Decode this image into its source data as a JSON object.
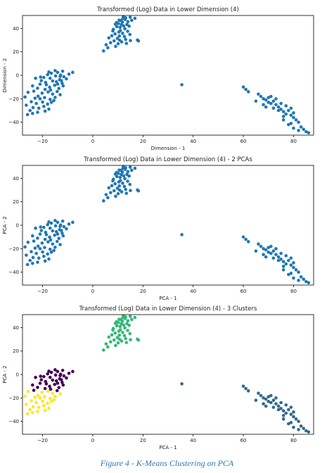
{
  "figure": {
    "caption": "Figure 4 - K-Means Clustering on PCA"
  },
  "colors": {
    "point": "#1f77b4",
    "cluster_purple": "#440154",
    "cluster_teal": "#31688e",
    "cluster_green": "#35b779",
    "cluster_yellow": "#fde725"
  },
  "chart_data": [
    {
      "type": "scatter",
      "title": "Transformed (Log) Data in Lower Dimension (4)",
      "xlabel": "Dimension - 1",
      "ylabel": "Dimension - 2",
      "xlim": [
        -28,
        88
      ],
      "ylim": [
        -51,
        51
      ],
      "xticks": [
        -20,
        0,
        20,
        40,
        60,
        80
      ],
      "yticks": [
        -40,
        -20,
        0,
        20,
        40
      ],
      "grid": false,
      "colored_by_cluster": false,
      "clusters": [
        {
          "id": "top",
          "color": "#1f77b4",
          "points": [
            [
              10.5,
              47
            ],
            [
              11.2,
              46.8
            ],
            [
              12.0,
              48.5
            ],
            [
              13.1,
              49.0
            ],
            [
              11.8,
              45.4
            ],
            [
              12.9,
              47.6
            ],
            [
              10.2,
              44.2
            ],
            [
              9.0,
              43.6
            ],
            [
              14.0,
              45.7
            ],
            [
              12.3,
              42.1
            ],
            [
              10.9,
              40.9
            ],
            [
              13.6,
              43.3
            ],
            [
              9.6,
              41.5
            ],
            [
              8.2,
              39.2
            ],
            [
              12.8,
              39.7
            ],
            [
              11.0,
              38.1
            ],
            [
              14.5,
              41.9
            ],
            [
              10.4,
              36.9
            ],
            [
              13.9,
              37.5
            ],
            [
              8.9,
              35.3
            ],
            [
              11.9,
              35.8
            ],
            [
              7.6,
              33.7
            ],
            [
              12.6,
              33.1
            ],
            [
              9.8,
              31.5
            ],
            [
              14.8,
              34.8
            ],
            [
              6.4,
              31.9
            ],
            [
              10.7,
              30.0
            ],
            [
              13.1,
              30.6
            ],
            [
              8.5,
              29.4
            ],
            [
              11.5,
              28.5
            ],
            [
              15.0,
              29.6
            ],
            [
              7.1,
              27.8
            ],
            [
              5.3,
              26.1
            ],
            [
              10.1,
              26.9
            ],
            [
              13.4,
              27.2
            ],
            [
              9.1,
              24.7
            ],
            [
              4.3,
              20.8
            ],
            [
              6.0,
              23.5
            ],
            [
              15.5,
              46.9
            ],
            [
              16.8,
              48.6
            ],
            [
              14.9,
              49.5
            ],
            [
              18.2,
              29.3
            ],
            [
              17.8,
              30.1
            ],
            [
              8.0,
              37.8
            ],
            [
              9.5,
              45.0
            ],
            [
              12.2,
              50.0
            ],
            [
              11.4,
              43.3
            ],
            [
              10.6,
              33.5
            ]
          ]
        },
        {
          "id": "left",
          "color": "#1f77b4",
          "points": [
            [
              -15,
              4
            ],
            [
              -14,
              2.5
            ],
            [
              -16.5,
              1.8
            ],
            [
              -13,
              -1
            ],
            [
              -12,
              3.5
            ],
            [
              -17,
              -2.5
            ],
            [
              -18,
              0.5
            ],
            [
              -19.5,
              -1.8
            ],
            [
              -16,
              -4.8
            ],
            [
              -14.5,
              -5.5
            ],
            [
              -13.2,
              -3.8
            ],
            [
              -11.5,
              -1.2
            ],
            [
              -20.5,
              -4.5
            ],
            [
              -21,
              -7.5
            ],
            [
              -18.5,
              -8.0
            ],
            [
              -17.2,
              -10.1
            ],
            [
              -15.2,
              -8.5
            ],
            [
              -13.5,
              -11.2
            ],
            [
              -12.2,
              -6.8
            ],
            [
              -19.0,
              -12.0
            ],
            [
              -22.0,
              -11.0
            ],
            [
              -23.5,
              -13.5
            ],
            [
              -20.2,
              -15.2
            ],
            [
              -17.8,
              -14.2
            ],
            [
              -16.0,
              -16.0
            ],
            [
              -14.2,
              -13.8
            ],
            [
              -21.8,
              -17.8
            ],
            [
              -23.0,
              -19.5
            ],
            [
              -19.2,
              -19.0
            ],
            [
              -17.0,
              -20.5
            ],
            [
              -15.0,
              -18.8
            ],
            [
              -24.5,
              -22.5
            ],
            [
              -22.5,
              -24.0
            ],
            [
              -20.0,
              -22.8
            ],
            [
              -18.0,
              -24.5
            ],
            [
              -16.5,
              -23.0
            ],
            [
              -23.8,
              -27.5
            ],
            [
              -21.5,
              -28.0
            ],
            [
              -19.5,
              -26.5
            ],
            [
              -25.0,
              -30.0
            ],
            [
              -22.0,
              -31.5
            ],
            [
              -19.0,
              -30.5
            ],
            [
              -17.5,
              -28.8
            ],
            [
              -26.5,
              -25.5
            ],
            [
              -27.0,
              -18.5
            ],
            [
              -25.8,
              -14.5
            ],
            [
              -24.0,
              -9.0
            ],
            [
              -22.8,
              -2.5
            ],
            [
              -10.5,
              -3.0
            ],
            [
              -8.0,
              2.5
            ],
            [
              -9.5,
              1.0
            ],
            [
              -12.8,
              0.2
            ],
            [
              -14.0,
              -7.5
            ],
            [
              -11.8,
              -9.0
            ],
            [
              -16.8,
              -12.5
            ],
            [
              -18.8,
              -6.0
            ],
            [
              -20.8,
              -1.5
            ],
            [
              -15.5,
              -21.5
            ],
            [
              -13.0,
              -16.5
            ],
            [
              -24.0,
              -32.5
            ],
            [
              -26.0,
              -33.5
            ],
            [
              -21.0,
              -20.0
            ],
            [
              -14.8,
              -0.5
            ],
            [
              -12.5,
              -4.5
            ],
            [
              -17.5,
              2.8
            ]
          ]
        },
        {
          "id": "right",
          "color": "#1f77b4",
          "points": [
            [
              60,
              -10
            ],
            [
              61,
              -12
            ],
            [
              62,
              -14
            ],
            [
              66,
              -16
            ],
            [
              67,
              -18
            ],
            [
              68,
              -20
            ],
            [
              69,
              -21
            ],
            [
              70,
              -19
            ],
            [
              70,
              -23
            ],
            [
              71,
              -24
            ],
            [
              72,
              -22
            ],
            [
              73,
              -25
            ],
            [
              74,
              -27
            ],
            [
              75,
              -24
            ],
            [
              75,
              -29
            ],
            [
              76,
              -31
            ],
            [
              77,
              -26
            ],
            [
              77,
              -33
            ],
            [
              78,
              -30
            ],
            [
              79,
              -28
            ],
            [
              79,
              -34
            ],
            [
              80,
              -32
            ],
            [
              80,
              -36
            ],
            [
              81,
              -38
            ],
            [
              82,
              -40
            ],
            [
              83,
              -44
            ],
            [
              84,
              -46
            ],
            [
              85,
              -48
            ],
            [
              86,
              -49
            ],
            [
              78,
              -42
            ],
            [
              80,
              -45
            ],
            [
              82,
              -47
            ],
            [
              76,
              -35
            ],
            [
              74,
              -30
            ],
            [
              72,
              -28
            ],
            [
              68,
              -25
            ],
            [
              71,
              -18
            ],
            [
              73,
              -20
            ],
            [
              65,
              -22
            ],
            [
              69,
              -27
            ],
            [
              76,
              -38
            ],
            [
              79,
              -41
            ]
          ]
        },
        {
          "id": "outlier",
          "color": "#1f77b4",
          "points": [
            [
              35.5,
              -8
            ]
          ]
        }
      ]
    },
    {
      "type": "scatter",
      "title": "Transformed (Log) Data in Lower Dimension (4) - 2 PCAs",
      "xlabel": "PCA - 1",
      "ylabel": "PCA - 2",
      "xlim": [
        -28,
        88
      ],
      "ylim": [
        -51,
        51
      ],
      "xticks": [
        -20,
        0,
        20,
        40,
        60,
        80
      ],
      "yticks": [
        -40,
        -20,
        0,
        20,
        40
      ],
      "grid": false,
      "colored_by_cluster": false,
      "clusters": "same-as-first"
    },
    {
      "type": "scatter",
      "title": "Transformed (Log) Data in Lower Dimension (4) - 3 Clusters",
      "xlabel": "PCA - 1",
      "ylabel": "PCA - 2",
      "xlim": [
        -28,
        88
      ],
      "ylim": [
        -51,
        51
      ],
      "xticks": [
        -20,
        0,
        20,
        40,
        60,
        80
      ],
      "yticks": [
        -40,
        -20,
        0,
        20,
        40
      ],
      "grid": false,
      "colored_by_cluster": true,
      "cluster_colors": {
        "top": "#35b779",
        "right": "#31688e",
        "outlier": "#31688e",
        "left_upper": "#440154",
        "left_lower": "#fde725"
      }
    }
  ]
}
